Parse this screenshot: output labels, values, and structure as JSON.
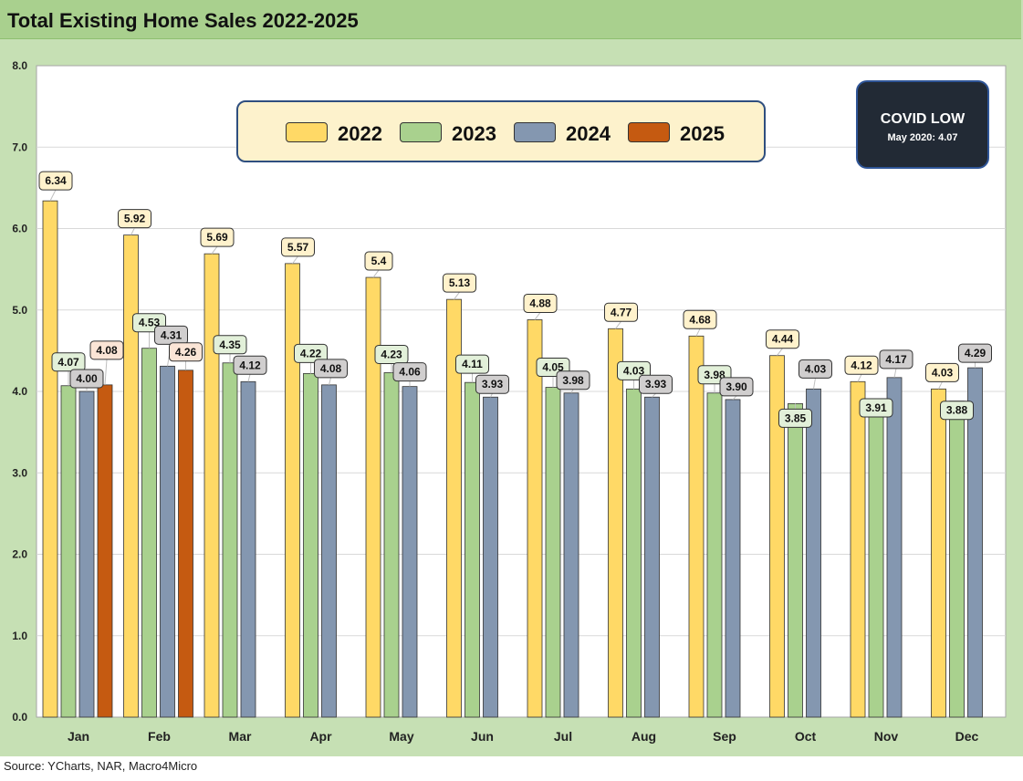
{
  "title": "Total Existing Home Sales 2022-2025",
  "source": "Source: YCharts, NAR, Macro4Micro",
  "covid_box": {
    "title": "COVID LOW",
    "subtitle": "May 2020: 4.07"
  },
  "colors": {
    "2022": "#ffd966",
    "2023": "#a9d18e",
    "2024": "#8497b0",
    "2025": "#c55a11",
    "label_2022": "#fff2cc",
    "label_2023": "#e2f0d9",
    "label_2024": "#d0cece",
    "label_2025": "#fbe5d6"
  },
  "chart_data": {
    "type": "bar",
    "title": "Total Existing Home Sales 2022-2025",
    "categories": [
      "Jan",
      "Feb",
      "Mar",
      "Apr",
      "May",
      "Jun",
      "Jul",
      "Aug",
      "Sep",
      "Oct",
      "Nov",
      "Dec"
    ],
    "series": [
      {
        "name": "2022",
        "values": [
          6.34,
          5.92,
          5.69,
          5.57,
          5.4,
          5.13,
          4.88,
          4.77,
          4.68,
          4.44,
          4.12,
          4.03
        ],
        "labels": [
          "6.34",
          "5.92",
          "5.69",
          "5.57",
          "5.4",
          "5.13",
          "4.88",
          "4.77",
          "4.68",
          "4.44",
          "4.12",
          "4.03"
        ]
      },
      {
        "name": "2023",
        "values": [
          4.07,
          4.53,
          4.35,
          4.22,
          4.23,
          4.11,
          4.05,
          4.03,
          3.98,
          3.85,
          3.91,
          3.88
        ],
        "labels": [
          "4.07",
          "4.53",
          "4.35",
          "4.22",
          "4.23",
          "4.11",
          "4.05",
          "4.03",
          "3.98",
          "3.85",
          "3.91",
          "3.88"
        ]
      },
      {
        "name": "2024",
        "values": [
          4.0,
          4.31,
          4.12,
          4.08,
          4.06,
          3.93,
          3.98,
          3.93,
          3.9,
          4.03,
          4.17,
          4.29
        ],
        "labels": [
          "4.00",
          "4.31",
          "4.12",
          "4.08",
          "4.06",
          "3.93",
          "3.98",
          "3.93",
          "3.90",
          "4.03",
          "4.17",
          "4.29"
        ]
      },
      {
        "name": "2025",
        "values": [
          4.08,
          4.26,
          null,
          null,
          null,
          null,
          null,
          null,
          null,
          null,
          null,
          null
        ],
        "labels": [
          "4.08",
          "4.26",
          "",
          "",
          "",
          "",
          "",
          "",
          "",
          "",
          "",
          ""
        ]
      }
    ],
    "ylim": [
      0,
      8
    ],
    "yticks": [
      "0.0",
      "1.0",
      "2.0",
      "3.0",
      "4.0",
      "5.0",
      "6.0",
      "7.0",
      "8.0"
    ],
    "xlabel": "",
    "ylabel": "",
    "grid": true,
    "legend": "top-center"
  }
}
